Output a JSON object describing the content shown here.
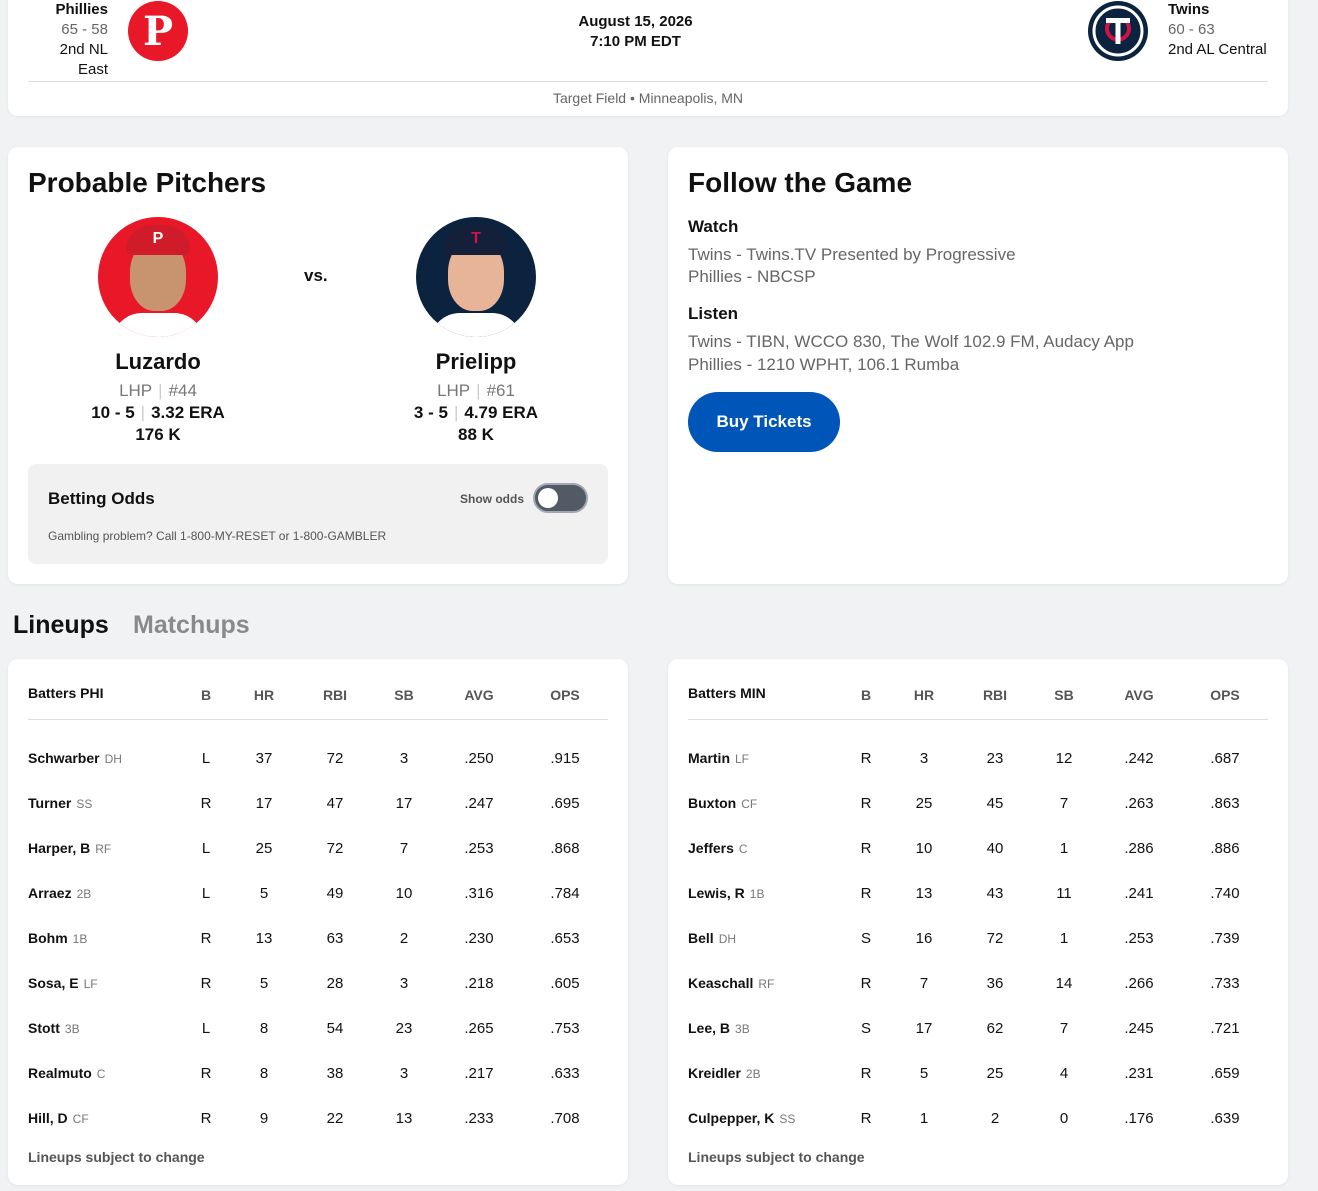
{
  "header": {
    "away": {
      "name": "Phillies",
      "record": "65 - 58",
      "standing": "2nd NL East",
      "logo_icon": "phillies-logo",
      "color": "#e81828"
    },
    "home": {
      "name": "Twins",
      "record": "60 - 63",
      "standing": "2nd AL Central",
      "logo_icon": "twins-logo",
      "color": "#0c2340"
    },
    "date": "August 15, 2026",
    "time": "7:10 PM EDT",
    "venue": "Target Field • Minneapolis, MN"
  },
  "pitchers": {
    "title": "Probable Pitchers",
    "vs": "vs.",
    "away": {
      "name": "Luzardo",
      "hand": "LHP",
      "number": "#44",
      "record": "10 - 5",
      "era": "3.32 ERA",
      "strikeouts": "176 K",
      "cap_letter": "P"
    },
    "home": {
      "name": "Prielipp",
      "hand": "LHP",
      "number": "#61",
      "record": "3 - 5",
      "era": "4.79 ERA",
      "strikeouts": "88 K",
      "cap_letter": "T"
    },
    "odds": {
      "title": "Betting Odds",
      "toggle_label": "Show odds",
      "toggle_on": false,
      "note": "Gambling problem? Call 1-800-MY-RESET or 1-800-GAMBLER"
    }
  },
  "follow": {
    "title": "Follow the Game",
    "watch_head": "Watch",
    "watch": [
      "Twins - Twins.TV Presented by Progressive",
      "Phillies - NBCSP"
    ],
    "listen_head": "Listen",
    "listen": [
      "Twins - TIBN, WCCO 830, The Wolf 102.9 FM, Audacy App",
      "Phillies - 1210 WPHT, 106.1 Rumba"
    ],
    "buy_label": "Buy Tickets"
  },
  "tabs": {
    "lineups": "Lineups",
    "matchups": "Matchups",
    "active": "Lineups"
  },
  "lineups": {
    "columns": [
      "B",
      "HR",
      "RBI",
      "SB",
      "AVG",
      "OPS"
    ],
    "note": "Lineups subject to change",
    "phi": {
      "heading": "Batters PHI",
      "batters": [
        {
          "name": "Schwarber",
          "pos": "DH",
          "b": "L",
          "hr": "37",
          "rbi": "72",
          "sb": "3",
          "avg": ".250",
          "ops": ".915"
        },
        {
          "name": "Turner",
          "pos": "SS",
          "b": "R",
          "hr": "17",
          "rbi": "47",
          "sb": "17",
          "avg": ".247",
          "ops": ".695"
        },
        {
          "name": "Harper, B",
          "pos": "RF",
          "b": "L",
          "hr": "25",
          "rbi": "72",
          "sb": "7",
          "avg": ".253",
          "ops": ".868"
        },
        {
          "name": "Arraez",
          "pos": "2B",
          "b": "L",
          "hr": "5",
          "rbi": "49",
          "sb": "10",
          "avg": ".316",
          "ops": ".784"
        },
        {
          "name": "Bohm",
          "pos": "1B",
          "b": "R",
          "hr": "13",
          "rbi": "63",
          "sb": "2",
          "avg": ".230",
          "ops": ".653"
        },
        {
          "name": "Sosa, E",
          "pos": "LF",
          "b": "R",
          "hr": "5",
          "rbi": "28",
          "sb": "3",
          "avg": ".218",
          "ops": ".605"
        },
        {
          "name": "Stott",
          "pos": "3B",
          "b": "L",
          "hr": "8",
          "rbi": "54",
          "sb": "23",
          "avg": ".265",
          "ops": ".753"
        },
        {
          "name": "Realmuto",
          "pos": "C",
          "b": "R",
          "hr": "8",
          "rbi": "38",
          "sb": "3",
          "avg": ".217",
          "ops": ".633"
        },
        {
          "name": "Hill, D",
          "pos": "CF",
          "b": "R",
          "hr": "9",
          "rbi": "22",
          "sb": "13",
          "avg": ".233",
          "ops": ".708"
        }
      ]
    },
    "min": {
      "heading": "Batters MIN",
      "batters": [
        {
          "name": "Martin",
          "pos": "LF",
          "b": "R",
          "hr": "3",
          "rbi": "23",
          "sb": "12",
          "avg": ".242",
          "ops": ".687"
        },
        {
          "name": "Buxton",
          "pos": "CF",
          "b": "R",
          "hr": "25",
          "rbi": "45",
          "sb": "7",
          "avg": ".263",
          "ops": ".863"
        },
        {
          "name": "Jeffers",
          "pos": "C",
          "b": "R",
          "hr": "10",
          "rbi": "40",
          "sb": "1",
          "avg": ".286",
          "ops": ".886"
        },
        {
          "name": "Lewis, R",
          "pos": "1B",
          "b": "R",
          "hr": "13",
          "rbi": "43",
          "sb": "11",
          "avg": ".241",
          "ops": ".740"
        },
        {
          "name": "Bell",
          "pos": "DH",
          "b": "S",
          "hr": "16",
          "rbi": "72",
          "sb": "1",
          "avg": ".253",
          "ops": ".739"
        },
        {
          "name": "Keaschall",
          "pos": "RF",
          "b": "R",
          "hr": "7",
          "rbi": "36",
          "sb": "14",
          "avg": ".266",
          "ops": ".733"
        },
        {
          "name": "Lee, B",
          "pos": "3B",
          "b": "S",
          "hr": "17",
          "rbi": "62",
          "sb": "7",
          "avg": ".245",
          "ops": ".721"
        },
        {
          "name": "Kreidler",
          "pos": "2B",
          "b": "R",
          "hr": "5",
          "rbi": "25",
          "sb": "4",
          "avg": ".231",
          "ops": ".659"
        },
        {
          "name": "Culpepper, K",
          "pos": "SS",
          "b": "R",
          "hr": "1",
          "rbi": "2",
          "sb": "0",
          "avg": ".176",
          "ops": ".639"
        }
      ]
    }
  }
}
